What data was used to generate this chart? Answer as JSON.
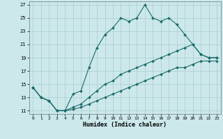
{
  "xlabel": "Humidex (Indice chaleur)",
  "bg_color": "#cce8ea",
  "grid_color": "#aaccce",
  "line_color": "#1a6b6b",
  "x_ticks": [
    0,
    1,
    2,
    3,
    4,
    5,
    6,
    7,
    8,
    9,
    10,
    11,
    12,
    13,
    14,
    15,
    16,
    17,
    18,
    19,
    20,
    21,
    22,
    23
  ],
  "y_ticks": [
    11,
    13,
    15,
    17,
    19,
    21,
    23,
    25,
    27
  ],
  "xlim": [
    -0.5,
    23.5
  ],
  "ylim": [
    10.5,
    27.5
  ],
  "line1_x": [
    0,
    1,
    2,
    3,
    4,
    5,
    6,
    7,
    8,
    9,
    10,
    11,
    12,
    13,
    14,
    15,
    16,
    17,
    18,
    19,
    20,
    21,
    22,
    23
  ],
  "line1_y": [
    14.5,
    13.0,
    12.5,
    11.0,
    11.0,
    13.5,
    14.0,
    17.5,
    20.5,
    22.5,
    23.5,
    25.0,
    24.5,
    25.0,
    27.0,
    25.0,
    24.5,
    25.0,
    24.0,
    22.5,
    21.0,
    19.5,
    19.0,
    19.0
  ],
  "line2_x": [
    0,
    1,
    2,
    3,
    4,
    5,
    6,
    7,
    8,
    9,
    10,
    11,
    12,
    13,
    14,
    15,
    16,
    17,
    18,
    19,
    20,
    21,
    22,
    23
  ],
  "line2_y": [
    14.5,
    13.0,
    12.5,
    11.0,
    11.0,
    11.5,
    12.0,
    13.0,
    14.0,
    15.0,
    15.5,
    16.5,
    17.0,
    17.5,
    18.0,
    18.5,
    19.0,
    19.5,
    20.0,
    20.5,
    21.0,
    19.5,
    19.0,
    19.0
  ],
  "line3_x": [
    0,
    1,
    2,
    3,
    4,
    5,
    6,
    7,
    8,
    9,
    10,
    11,
    12,
    13,
    14,
    15,
    16,
    17,
    18,
    19,
    20,
    21,
    22,
    23
  ],
  "line3_y": [
    14.5,
    13.0,
    12.5,
    11.0,
    11.0,
    11.2,
    11.5,
    12.0,
    12.5,
    13.0,
    13.5,
    14.0,
    14.5,
    15.0,
    15.5,
    16.0,
    16.5,
    17.0,
    17.5,
    17.5,
    18.0,
    18.5,
    18.5,
    18.5
  ]
}
